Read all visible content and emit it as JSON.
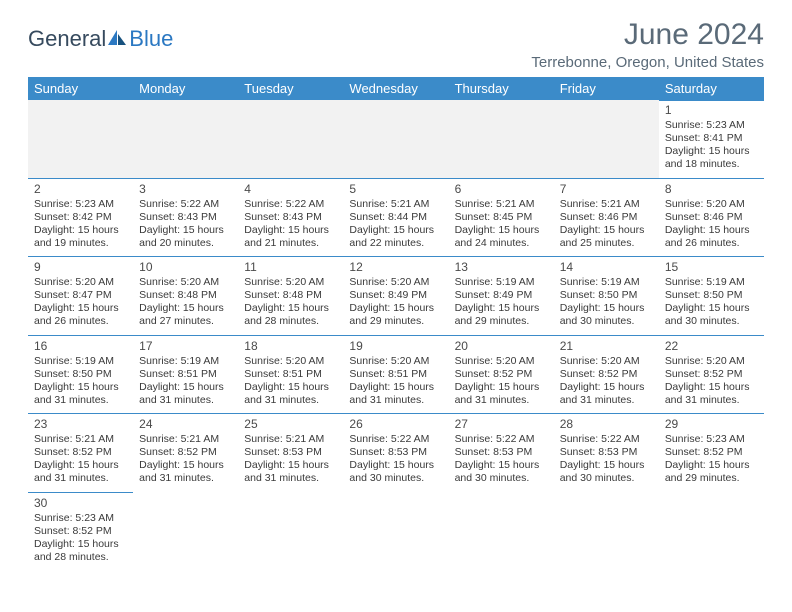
{
  "logo": {
    "text1": "General",
    "text2": "Blue"
  },
  "header": {
    "title": "June 2024",
    "location": "Terrebonne, Oregon, United States"
  },
  "theme": {
    "header_bg": "#3b8bc9",
    "header_fg": "#ffffff",
    "cell_border": "#3b8bc9",
    "empty_bg": "#f2f2f2",
    "body_font_size": 10.5,
    "title_color": "#5a6a78"
  },
  "weekdays": [
    "Sunday",
    "Monday",
    "Tuesday",
    "Wednesday",
    "Thursday",
    "Friday",
    "Saturday"
  ],
  "weeks": [
    [
      null,
      null,
      null,
      null,
      null,
      null,
      {
        "n": "1",
        "sr": "5:23 AM",
        "ss": "8:41 PM",
        "dh": "15",
        "dm": "18"
      }
    ],
    [
      {
        "n": "2",
        "sr": "5:23 AM",
        "ss": "8:42 PM",
        "dh": "15",
        "dm": "19"
      },
      {
        "n": "3",
        "sr": "5:22 AM",
        "ss": "8:43 PM",
        "dh": "15",
        "dm": "20"
      },
      {
        "n": "4",
        "sr": "5:22 AM",
        "ss": "8:43 PM",
        "dh": "15",
        "dm": "21"
      },
      {
        "n": "5",
        "sr": "5:21 AM",
        "ss": "8:44 PM",
        "dh": "15",
        "dm": "22"
      },
      {
        "n": "6",
        "sr": "5:21 AM",
        "ss": "8:45 PM",
        "dh": "15",
        "dm": "24"
      },
      {
        "n": "7",
        "sr": "5:21 AM",
        "ss": "8:46 PM",
        "dh": "15",
        "dm": "25"
      },
      {
        "n": "8",
        "sr": "5:20 AM",
        "ss": "8:46 PM",
        "dh": "15",
        "dm": "26"
      }
    ],
    [
      {
        "n": "9",
        "sr": "5:20 AM",
        "ss": "8:47 PM",
        "dh": "15",
        "dm": "26"
      },
      {
        "n": "10",
        "sr": "5:20 AM",
        "ss": "8:48 PM",
        "dh": "15",
        "dm": "27"
      },
      {
        "n": "11",
        "sr": "5:20 AM",
        "ss": "8:48 PM",
        "dh": "15",
        "dm": "28"
      },
      {
        "n": "12",
        "sr": "5:20 AM",
        "ss": "8:49 PM",
        "dh": "15",
        "dm": "29"
      },
      {
        "n": "13",
        "sr": "5:19 AM",
        "ss": "8:49 PM",
        "dh": "15",
        "dm": "29"
      },
      {
        "n": "14",
        "sr": "5:19 AM",
        "ss": "8:50 PM",
        "dh": "15",
        "dm": "30"
      },
      {
        "n": "15",
        "sr": "5:19 AM",
        "ss": "8:50 PM",
        "dh": "15",
        "dm": "30"
      }
    ],
    [
      {
        "n": "16",
        "sr": "5:19 AM",
        "ss": "8:50 PM",
        "dh": "15",
        "dm": "31"
      },
      {
        "n": "17",
        "sr": "5:19 AM",
        "ss": "8:51 PM",
        "dh": "15",
        "dm": "31"
      },
      {
        "n": "18",
        "sr": "5:20 AM",
        "ss": "8:51 PM",
        "dh": "15",
        "dm": "31"
      },
      {
        "n": "19",
        "sr": "5:20 AM",
        "ss": "8:51 PM",
        "dh": "15",
        "dm": "31"
      },
      {
        "n": "20",
        "sr": "5:20 AM",
        "ss": "8:52 PM",
        "dh": "15",
        "dm": "31"
      },
      {
        "n": "21",
        "sr": "5:20 AM",
        "ss": "8:52 PM",
        "dh": "15",
        "dm": "31"
      },
      {
        "n": "22",
        "sr": "5:20 AM",
        "ss": "8:52 PM",
        "dh": "15",
        "dm": "31"
      }
    ],
    [
      {
        "n": "23",
        "sr": "5:21 AM",
        "ss": "8:52 PM",
        "dh": "15",
        "dm": "31"
      },
      {
        "n": "24",
        "sr": "5:21 AM",
        "ss": "8:52 PM",
        "dh": "15",
        "dm": "31"
      },
      {
        "n": "25",
        "sr": "5:21 AM",
        "ss": "8:53 PM",
        "dh": "15",
        "dm": "31"
      },
      {
        "n": "26",
        "sr": "5:22 AM",
        "ss": "8:53 PM",
        "dh": "15",
        "dm": "30"
      },
      {
        "n": "27",
        "sr": "5:22 AM",
        "ss": "8:53 PM",
        "dh": "15",
        "dm": "30"
      },
      {
        "n": "28",
        "sr": "5:22 AM",
        "ss": "8:53 PM",
        "dh": "15",
        "dm": "30"
      },
      {
        "n": "29",
        "sr": "5:23 AM",
        "ss": "8:52 PM",
        "dh": "15",
        "dm": "29"
      }
    ],
    [
      {
        "n": "30",
        "sr": "5:23 AM",
        "ss": "8:52 PM",
        "dh": "15",
        "dm": "28"
      },
      null,
      null,
      null,
      null,
      null,
      null
    ]
  ],
  "labels": {
    "sunrise": "Sunrise: ",
    "sunset": "Sunset: ",
    "daylight_p1": "Daylight: ",
    "daylight_p2": " hours and ",
    "daylight_p3": " minutes."
  }
}
